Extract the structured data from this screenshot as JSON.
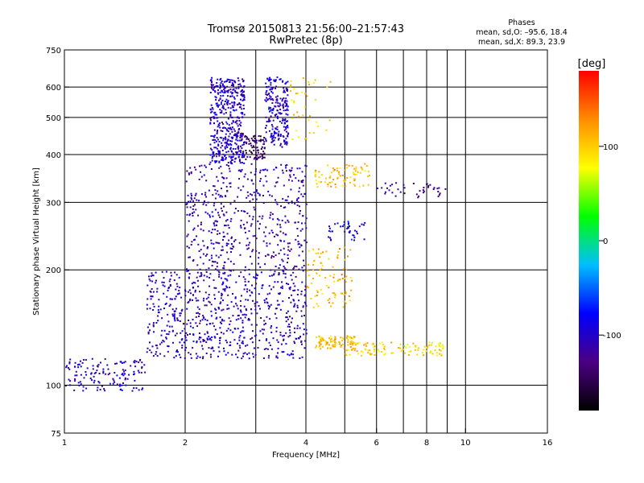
{
  "chart_data": {
    "type": "scatter",
    "title": "Tromsø 20150813 21:56:00–21:57:43",
    "subtitle": "RwPretec (8p)",
    "phases_title": "Phases",
    "phases_line1": "mean, sd,O: –95.6, 18.4",
    "phases_line2": "mean, sd,X:  89.3, 23.9",
    "xlabel": "Frequency [MHz]",
    "ylabel": "Stationary phase Virtual Height [km]",
    "x_scale": "log",
    "y_scale": "log",
    "xlim": [
      1,
      16
    ],
    "ylim": [
      75,
      750
    ],
    "x_ticks": [
      1,
      2,
      4,
      6,
      8,
      10,
      16
    ],
    "y_ticks": [
      75,
      100,
      200,
      300,
      400,
      500,
      600,
      750
    ],
    "x_gridlines": [
      2,
      3,
      4,
      5,
      6,
      7,
      8,
      9,
      10
    ],
    "y_gridlines": [
      100,
      200,
      300,
      400,
      500,
      600
    ],
    "colorbar": {
      "label": "[deg]",
      "range": [
        -180,
        180
      ],
      "ticks": [
        100,
        0,
        -100
      ],
      "colors": [
        "#000000",
        "#4b0082",
        "#0000ff",
        "#00bfff",
        "#00ff00",
        "#ffff00",
        "#ff8c00",
        "#ff0000"
      ]
    },
    "clusters": [
      {
        "f_range": [
          2.3,
          2.8
        ],
        "h_range": [
          380,
          640
        ],
        "phase": -100,
        "density": 450
      },
      {
        "f_range": [
          2.8,
          3.15
        ],
        "h_range": [
          390,
          450
        ],
        "phase": -145,
        "density": 80
      },
      {
        "f_range": [
          3.15,
          3.6
        ],
        "h_range": [
          420,
          640
        ],
        "phase": -100,
        "density": 220
      },
      {
        "f_range": [
          3.6,
          4.6
        ],
        "h_range": [
          440,
          640
        ],
        "phase": 100,
        "density": 40
      },
      {
        "f_range": [
          4.2,
          5.8
        ],
        "h_range": [
          330,
          380
        ],
        "phase": 105,
        "density": 80
      },
      {
        "f_range": [
          5.8,
          9.0
        ],
        "h_range": [
          310,
          340
        ],
        "phase": -120,
        "density": 40
      },
      {
        "f_range": [
          2.0,
          4.0
        ],
        "h_range": [
          200,
          380
        ],
        "phase": -110,
        "density": 500
      },
      {
        "f_range": [
          1.6,
          4.0
        ],
        "h_range": [
          118,
          200
        ],
        "phase": -105,
        "density": 700
      },
      {
        "f_range": [
          4.0,
          5.2
        ],
        "h_range": [
          160,
          230
        ],
        "phase": 110,
        "density": 90
      },
      {
        "f_range": [
          1.0,
          1.6
        ],
        "h_range": [
          97,
          118
        ],
        "phase": -100,
        "density": 140
      },
      {
        "f_range": [
          4.2,
          5.3
        ],
        "h_range": [
          125,
          135
        ],
        "phase": 110,
        "density": 90
      },
      {
        "f_range": [
          5.0,
          8.8
        ],
        "h_range": [
          120,
          130
        ],
        "phase": 95,
        "density": 110
      },
      {
        "f_range": [
          4.5,
          5.6
        ],
        "h_range": [
          240,
          270
        ],
        "phase": -90,
        "density": 40
      }
    ]
  }
}
